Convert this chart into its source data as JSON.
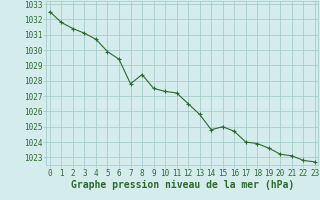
{
  "x": [
    0,
    1,
    2,
    3,
    4,
    5,
    6,
    7,
    8,
    9,
    10,
    11,
    12,
    13,
    14,
    15,
    16,
    17,
    18,
    19,
    20,
    21,
    22,
    23
  ],
  "y": [
    1032.5,
    1031.8,
    1031.4,
    1031.1,
    1030.7,
    1029.9,
    1029.4,
    1027.8,
    1028.4,
    1027.5,
    1027.3,
    1027.2,
    1026.5,
    1025.8,
    1024.8,
    1025.0,
    1024.7,
    1024.0,
    1023.9,
    1023.6,
    1023.2,
    1023.1,
    1022.8,
    1022.7
  ],
  "ylim": [
    1022.5,
    1033.2
  ],
  "xlim": [
    -0.3,
    23.3
  ],
  "yticks": [
    1023,
    1024,
    1025,
    1026,
    1027,
    1028,
    1029,
    1030,
    1031,
    1032,
    1033
  ],
  "xticks": [
    0,
    1,
    2,
    3,
    4,
    5,
    6,
    7,
    8,
    9,
    10,
    11,
    12,
    13,
    14,
    15,
    16,
    17,
    18,
    19,
    20,
    21,
    22,
    23
  ],
  "xlabel": "Graphe pression niveau de la mer (hPa)",
  "line_color": "#2d6a2d",
  "marker": "+",
  "bg_color": "#d4ecec",
  "grid_color": "#9ec8c8",
  "tick_label_color": "#2d6a2d",
  "xlabel_color": "#2d6a2d",
  "tick_fontsize": 5.5,
  "xlabel_fontsize": 7.0,
  "linewidth": 0.8,
  "markersize": 3.5
}
